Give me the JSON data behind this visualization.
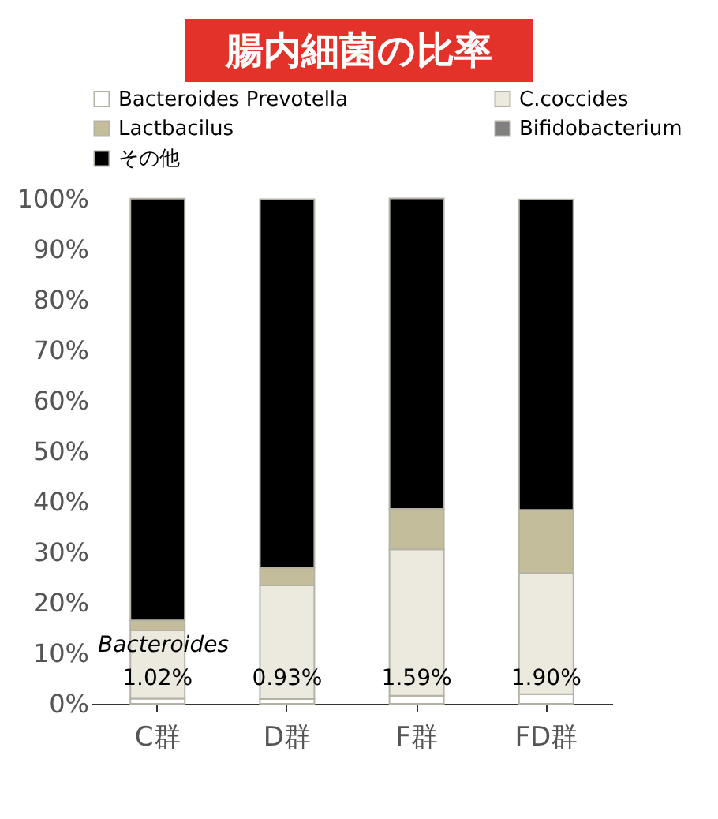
{
  "chart_data": {
    "type": "bar",
    "title": "腸内細菌の比率",
    "categories": [
      "C群",
      "D群",
      "F群",
      "FD群"
    ],
    "stacked": true,
    "legend": "top",
    "ylim": [
      0,
      100
    ],
    "yticks": [
      {
        "value": 0,
        "label": "0%"
      },
      {
        "value": 10,
        "label": "10%"
      },
      {
        "value": 20,
        "label": "20%"
      },
      {
        "value": 30,
        "label": "30%"
      },
      {
        "value": 40,
        "label": "40%"
      },
      {
        "value": 50,
        "label": "50%"
      },
      {
        "value": 60,
        "label": "60%"
      },
      {
        "value": 70,
        "label": "70%"
      },
      {
        "value": 80,
        "label": "80%"
      },
      {
        "value": 90,
        "label": "90%"
      },
      {
        "value": 100,
        "label": "100%"
      }
    ],
    "series": [
      {
        "name": "Bacteroides Prevotella",
        "color": "#ffffff",
        "values": [
          1.02,
          0.93,
          1.59,
          1.9
        ],
        "value_labels": [
          "1.02%",
          "0.93%",
          "1.59%",
          "1.90%"
        ]
      },
      {
        "name": "C.coccides",
        "color": "#ece9df",
        "values": [
          13.5,
          22.5,
          29,
          24
        ]
      },
      {
        "name": "Lactbacilus",
        "color": "#c4bd9c",
        "values": [
          2,
          3.5,
          8,
          12.5
        ]
      },
      {
        "name": "Bifidobacterium",
        "color": "#808080",
        "values": [
          null,
          null,
          null,
          null
        ]
      },
      {
        "name": "その他",
        "color": "#000000",
        "values": [
          83.5,
          73,
          61.5,
          61.5
        ]
      }
    ],
    "annotations": [
      "Bacteroides"
    ]
  }
}
